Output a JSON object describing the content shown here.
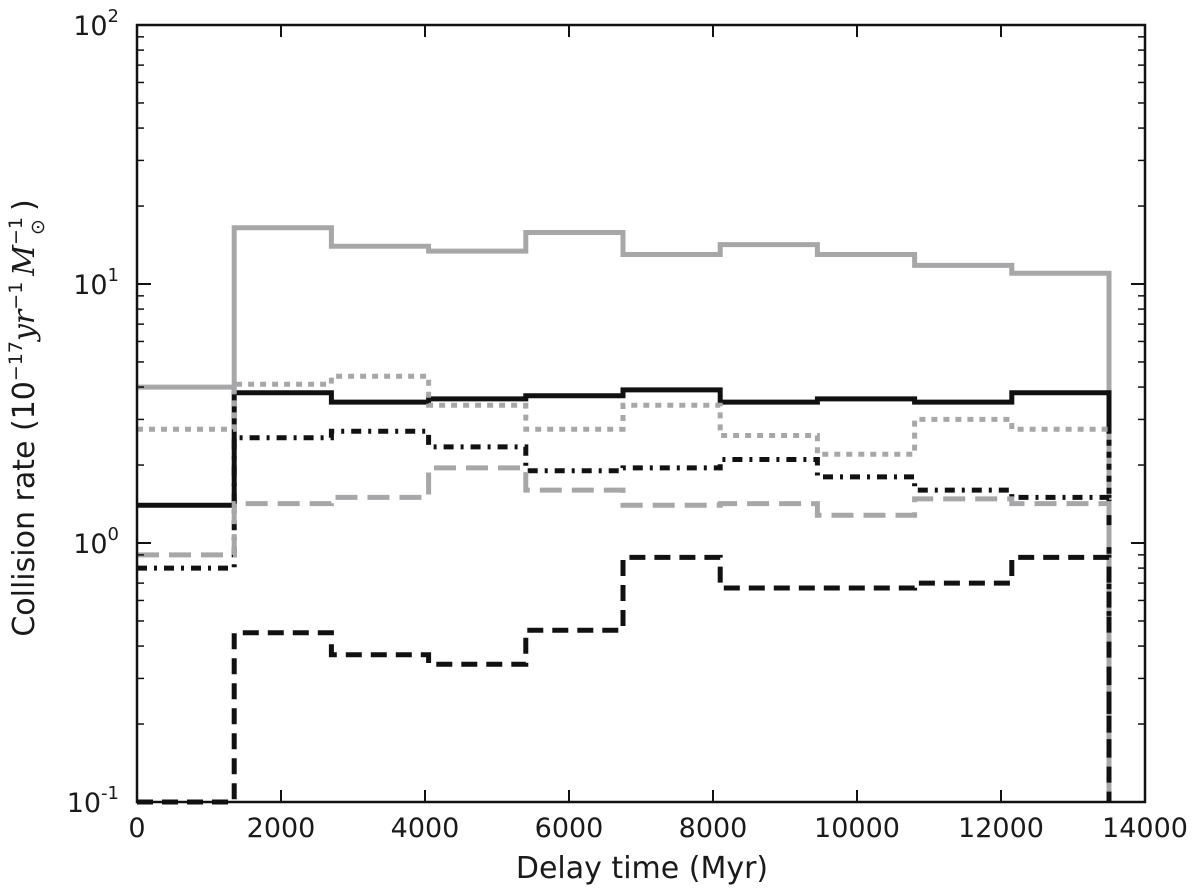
{
  "chart_data": {
    "type": "line",
    "step": true,
    "xlabel": "Delay time (Myr)",
    "ylabel": {
      "prefix": "Collision rate (",
      "unit_base": "10",
      "unit_exp": "−17",
      "unit_yr": "yr",
      "unit_yr_exp": "−1",
      "unit_m": "M",
      "unit_m_exp": "−1",
      "unit_m_sub": "⊙",
      "suffix": ")"
    },
    "xlim": [
      0,
      14000
    ],
    "ylim": [
      0.1,
      100
    ],
    "yscale": "log",
    "grid": false,
    "x_ticks": [
      "0",
      "2000",
      "4000",
      "6000",
      "8000",
      "10000",
      "12000",
      "14000"
    ],
    "y_ticks": [
      {
        "base": "10",
        "exp": "-1"
      },
      {
        "base": "10",
        "exp": "0"
      },
      {
        "base": "10",
        "exp": "1"
      },
      {
        "base": "10",
        "exp": "2"
      }
    ],
    "bin_edges": [
      0,
      1350,
      2700,
      4050,
      5400,
      6750,
      8100,
      9450,
      10800,
      12150,
      13500
    ],
    "series": [
      {
        "style": "solid-gray",
        "color": "#a7a7a9",
        "dash": "",
        "values": [
          4.0,
          16.5,
          14.0,
          13.4,
          15.8,
          13.0,
          14.2,
          13.0,
          11.8,
          11.0
        ]
      },
      {
        "style": "solid-black",
        "color": "#111111",
        "dash": "",
        "values": [
          1.4,
          3.8,
          3.5,
          3.6,
          3.7,
          3.9,
          3.5,
          3.6,
          3.5,
          3.8
        ]
      },
      {
        "style": "dotted-gray",
        "color": "#a7a7a9",
        "dash": "6,6",
        "values": [
          2.75,
          4.1,
          4.4,
          3.4,
          2.75,
          3.4,
          2.6,
          2.2,
          3.0,
          2.75
        ]
      },
      {
        "style": "dashdot-black",
        "color": "#111111",
        "dash": "10,7,3,7",
        "values": [
          0.8,
          2.55,
          2.7,
          2.35,
          1.9,
          1.95,
          2.1,
          1.8,
          1.6,
          1.5
        ]
      },
      {
        "style": "dashed-gray",
        "color": "#a7a7a9",
        "dash": "22,10",
        "values": [
          0.9,
          1.42,
          1.5,
          1.95,
          1.6,
          1.4,
          1.42,
          1.28,
          1.48,
          1.42
        ]
      },
      {
        "style": "dashed-black",
        "color": "#111111",
        "dash": "16,9",
        "values": [
          0.1,
          0.45,
          0.37,
          0.34,
          0.46,
          0.88,
          0.67,
          0.67,
          0.7,
          0.88
        ]
      }
    ]
  }
}
